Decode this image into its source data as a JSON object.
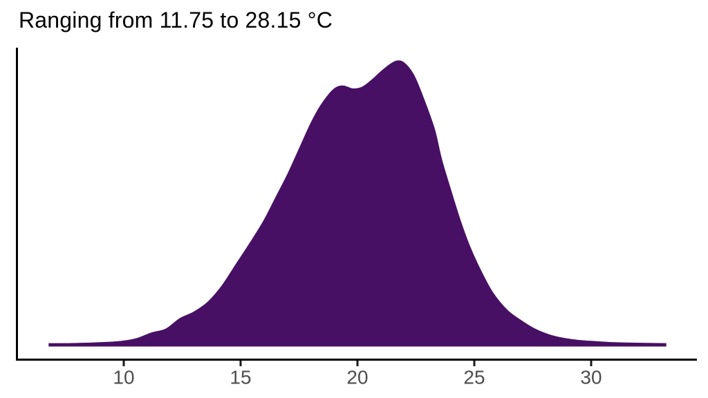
{
  "title": "Ranging from 11.75 to 28.15 °C",
  "colors": {
    "background": "#ffffff",
    "fill": "#481064",
    "axis_line": "#000000",
    "tick_mark": "#1a1a1a",
    "tick_label": "#4d4d4d",
    "title_text": "#000000"
  },
  "chart_data": {
    "type": "area",
    "subtype": "density",
    "title": "Ranging from 11.75 to 28.15 °C",
    "xlabel": "",
    "ylabel": "",
    "unit": "°C",
    "range_min_shown_in_title": 11.75,
    "range_max_shown_in_title": 28.15,
    "x_ticks": [
      10,
      15,
      20,
      25,
      30
    ],
    "xlim": [
      5.4,
      34.5
    ],
    "curve_x_extent": [
      6.8,
      33.2
    ],
    "peak_x": 21.7,
    "shoulder_x": 19.1,
    "grid": "off",
    "legend": "none",
    "y_axis_labels": "none",
    "points": [
      [
        6.8,
        0.007
      ],
      [
        7.6,
        0.007
      ],
      [
        8.6,
        0.009
      ],
      [
        9.4,
        0.012
      ],
      [
        10.0,
        0.016
      ],
      [
        10.6,
        0.026
      ],
      [
        11.2,
        0.045
      ],
      [
        11.8,
        0.058
      ],
      [
        12.4,
        0.095
      ],
      [
        13.0,
        0.118
      ],
      [
        13.6,
        0.153
      ],
      [
        14.2,
        0.21
      ],
      [
        14.8,
        0.285
      ],
      [
        15.4,
        0.36
      ],
      [
        16.0,
        0.44
      ],
      [
        16.5,
        0.52
      ],
      [
        17.0,
        0.6
      ],
      [
        17.5,
        0.69
      ],
      [
        18.0,
        0.78
      ],
      [
        18.4,
        0.84
      ],
      [
        18.8,
        0.885
      ],
      [
        19.1,
        0.907
      ],
      [
        19.4,
        0.912
      ],
      [
        19.8,
        0.902
      ],
      [
        20.2,
        0.908
      ],
      [
        20.6,
        0.932
      ],
      [
        21.0,
        0.962
      ],
      [
        21.4,
        0.988
      ],
      [
        21.7,
        1.0
      ],
      [
        22.0,
        0.993
      ],
      [
        22.4,
        0.952
      ],
      [
        22.8,
        0.875
      ],
      [
        23.3,
        0.76
      ],
      [
        23.6,
        0.655
      ],
      [
        24.0,
        0.545
      ],
      [
        24.4,
        0.44
      ],
      [
        24.8,
        0.35
      ],
      [
        25.3,
        0.26
      ],
      [
        25.8,
        0.185
      ],
      [
        26.4,
        0.125
      ],
      [
        27.0,
        0.088
      ],
      [
        27.6,
        0.058
      ],
      [
        28.2,
        0.038
      ],
      [
        28.8,
        0.026
      ],
      [
        29.4,
        0.019
      ],
      [
        30.0,
        0.015
      ],
      [
        30.8,
        0.011
      ],
      [
        31.6,
        0.009
      ],
      [
        32.4,
        0.008
      ],
      [
        33.2,
        0.007
      ]
    ]
  }
}
